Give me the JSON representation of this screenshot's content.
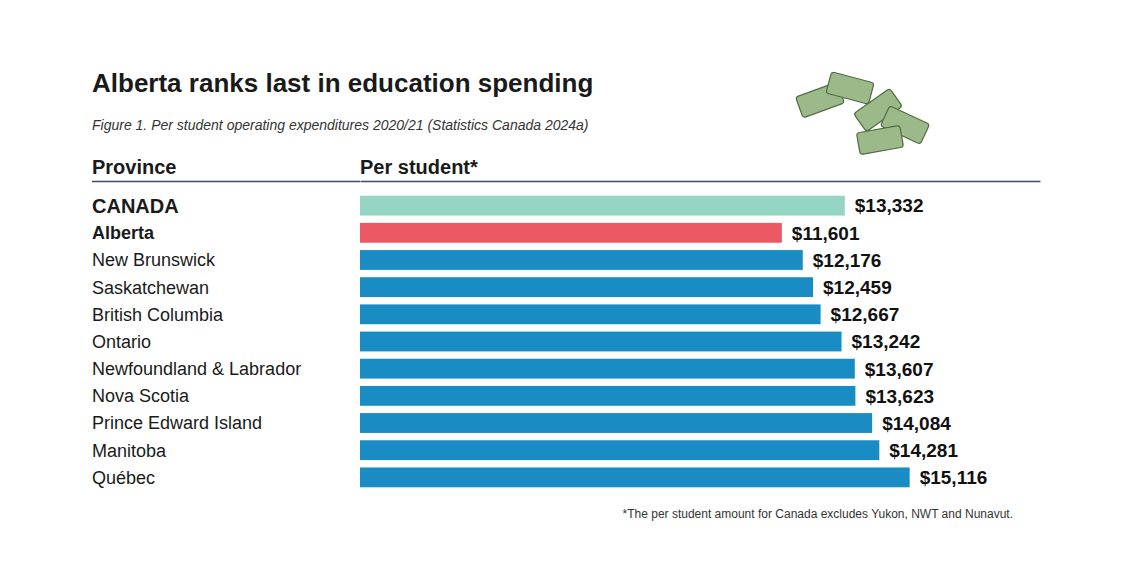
{
  "chart_data": {
    "type": "bar",
    "orientation": "horizontal",
    "title": "Alberta ranks last in education spending",
    "subtitle": "Figure 1. Per student operating expenditures 2020/21 (Statistics Canada 2024a)",
    "ylabel": "Province",
    "xlabel": "Per student*",
    "annotations": [
      "*The per student amount for Canada excludes Yukon, NWT and Nunavut."
    ],
    "categories": [
      "CANADA",
      "Alberta",
      "New Brunswick",
      "Saskatchewan",
      "British Columbia",
      "Ontario",
      "Newfoundland & Labrador",
      "Nova Scotia",
      "Prince Edward Island",
      "Manitoba",
      "Québec"
    ],
    "values": [
      13332,
      11601,
      12176,
      12459,
      12667,
      13242,
      13607,
      13623,
      14084,
      14281,
      15116
    ],
    "value_labels": [
      "$13,332",
      "$11,601",
      "$12,176",
      "$12,459",
      "$12,667",
      "$13,242",
      "$13,607",
      "$13,623",
      "$14,084",
      "$14,281",
      "$15,116"
    ],
    "colors": [
      "#95d5c4",
      "#ec5863",
      "#1a8cc4",
      "#1a8cc4",
      "#1a8cc4",
      "#1a8cc4",
      "#1a8cc4",
      "#1a8cc4",
      "#1a8cc4",
      "#1a8cc4",
      "#1a8cc4"
    ],
    "xlim": [
      0,
      18700
    ],
    "data_labels": true,
    "tick_labels": false,
    "grid": false
  }
}
